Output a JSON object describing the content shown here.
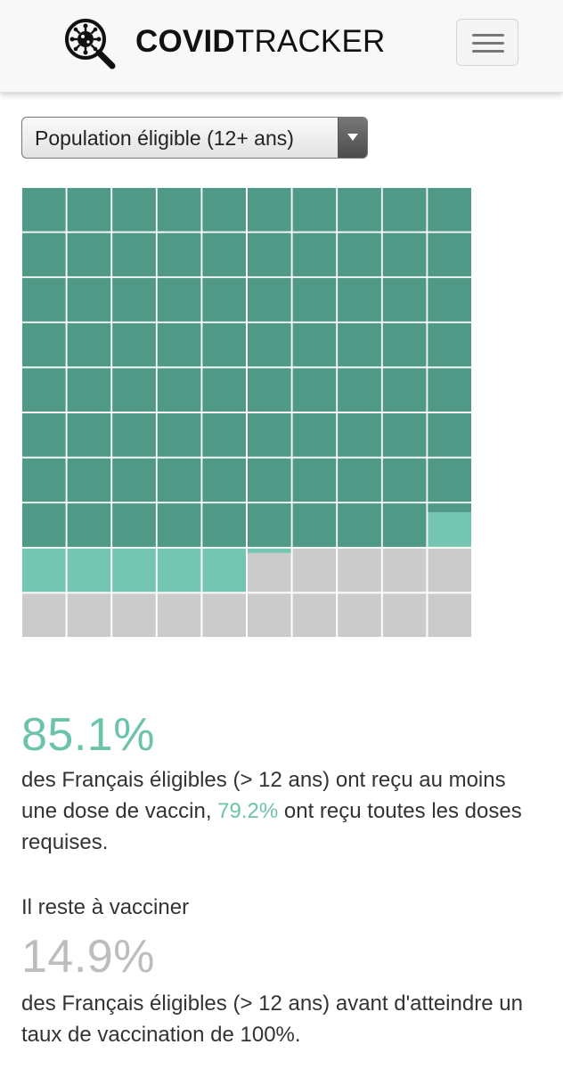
{
  "header": {
    "brand_bold": "COVID",
    "brand_light": "TRACKER",
    "logo_icon": "virus-magnifier-icon",
    "menu_icon": "hamburger-menu-icon"
  },
  "selector": {
    "value": "Population éligible (12+ ans)",
    "arrow_icon": "dropdown-arrow-icon"
  },
  "waffle": {
    "total_cells": 100,
    "full_vaccinated_pct": 79.2,
    "first_dose_pct": 85.1,
    "colors": {
      "full": "#519987",
      "partial": "#74c6b2",
      "remaining": "#cbcbcb",
      "grid": "#ffffff"
    }
  },
  "stats": {
    "vaccinated_pct": "85.1%",
    "vaccinated_text_before": "des Français éligibles (> 12 ans) ont reçu au moins une dose de vaccin, ",
    "full_pct": "79.2%",
    "vaccinated_text_after": " ont reçu toutes les doses requises.",
    "remaining_label": "Il reste à vacciner",
    "remaining_pct": "14.9%",
    "remaining_text": "des Français éligibles (> 12 ans) avant d'atteindre un taux de vaccination de 100%.",
    "accent_color": "#6cc3ac",
    "muted_color": "#bdbdbd"
  }
}
